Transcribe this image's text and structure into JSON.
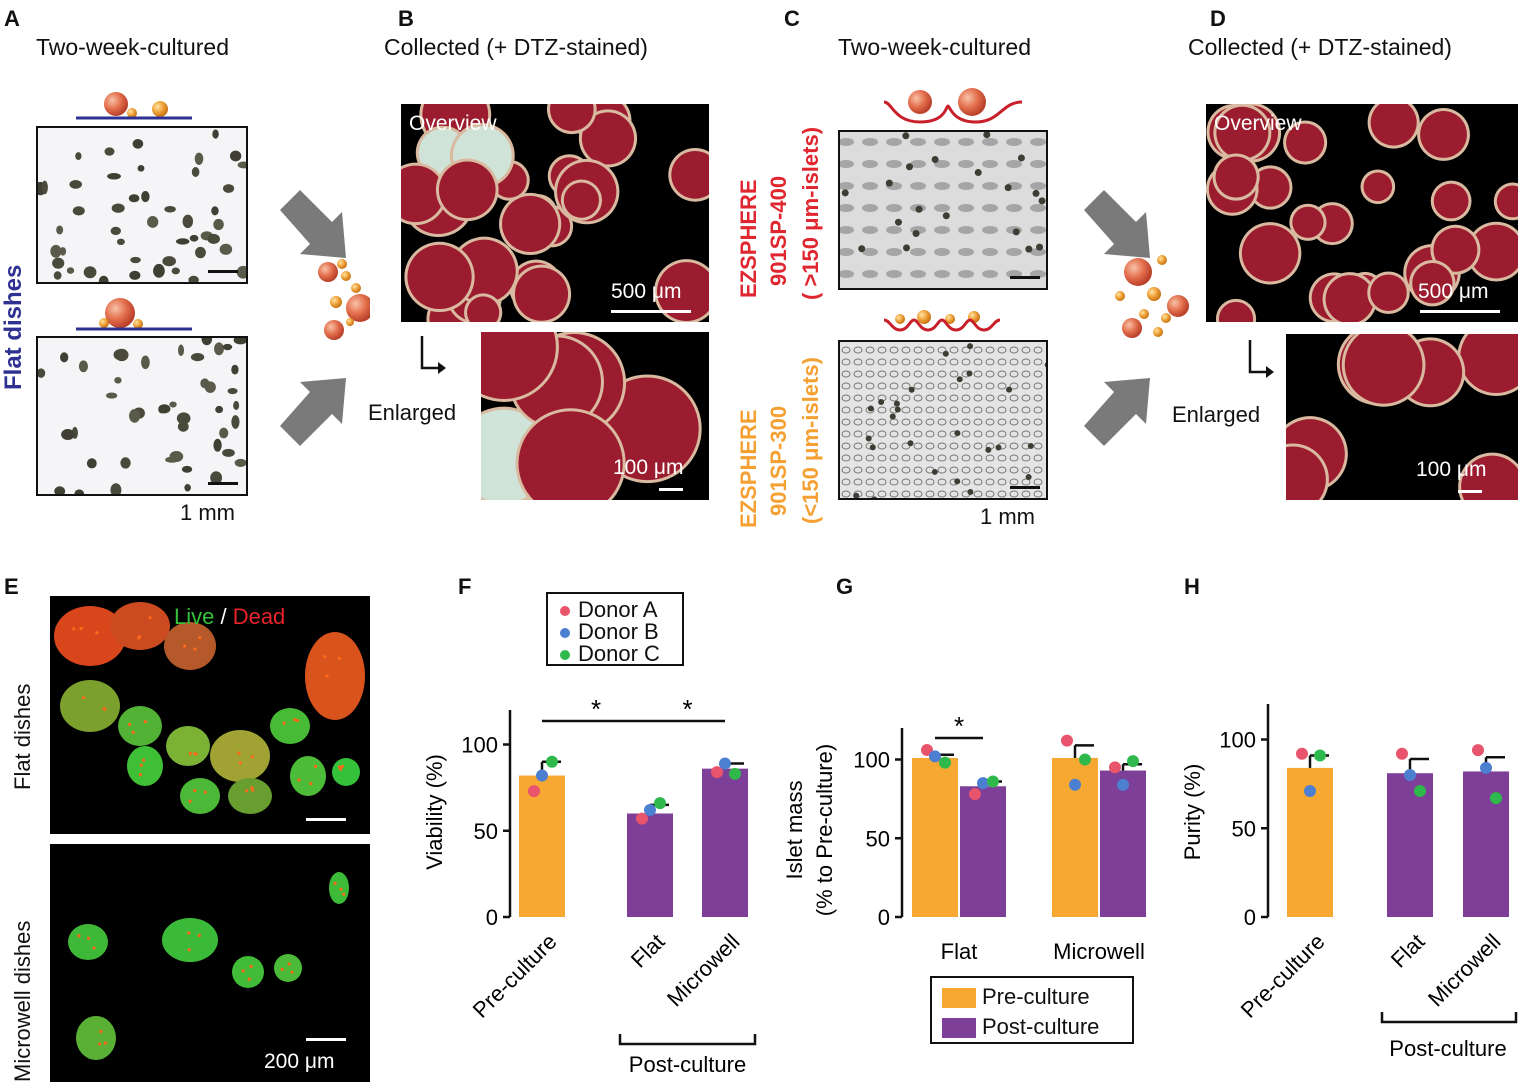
{
  "panels": {
    "A": {
      "letter": "A",
      "title": "Two-week-cultured",
      "side_label": "Flat  dishes",
      "scale": "1 mm"
    },
    "B": {
      "letter": "B",
      "title": "Collected (+ DTZ-stained)",
      "overview": "Overview",
      "enlarged": "Enlarged",
      "scale_top": "500 μm",
      "scale_bottom": "100 μm"
    },
    "C": {
      "letter": "C",
      "title": "Two-week-cultured",
      "label_top_1": "EZSPHERE",
      "label_top_2": "901SP-400",
      "label_top_3": "( >150 μm-islets)",
      "label_bot_1": "EZSPHERE",
      "label_bot_2": "901SP-300",
      "label_bot_3": "(<150 μm-islets)",
      "scale": "1 mm"
    },
    "D": {
      "letter": "D",
      "title": "Collected (+ DTZ-stained)",
      "overview": "Overview",
      "enlarged": "Enlarged",
      "scale_top": "500 μm",
      "scale_bottom": "100 μm"
    },
    "E": {
      "letter": "E",
      "live": "Live",
      "slash": " / ",
      "dead": "Dead",
      "label_top": "Flat dishes",
      "label_bottom": "Microwell dishes",
      "scale": "200 μm"
    },
    "F": {
      "letter": "F"
    },
    "G": {
      "letter": "G"
    },
    "H": {
      "letter": "H"
    }
  },
  "colors": {
    "pre_culture": "#F7A833",
    "post_culture": "#7E3F98",
    "donor_a": "#E8546B",
    "donor_b": "#4D7FD1",
    "donor_c": "#2FB84B",
    "ezsphere_400": "#E0262F",
    "ezsphere_300": "#F5A033",
    "flat_label": "#2E3192",
    "dtz": "#9B1C2E"
  },
  "donor_legend": [
    "Donor A",
    "Donor B",
    "Donor C"
  ],
  "culture_legend": [
    "Pre-culture",
    "Post-culture"
  ],
  "chart_data": [
    {
      "id": "F",
      "type": "bar",
      "categories": [
        "Pre-culture",
        "Flat",
        "Microwell"
      ],
      "group_label": "Post-culture",
      "ylabel": "Viability (%)",
      "ylim": [
        0,
        120
      ],
      "yticks": [
        0,
        50,
        100
      ],
      "bar_colors": [
        "pre_culture",
        "post_culture",
        "post_culture"
      ],
      "values": [
        82,
        60,
        86
      ],
      "errors": [
        8,
        5,
        3
      ],
      "donors": {
        "Donor A": [
          73,
          57,
          84
        ],
        "Donor B": [
          82,
          62,
          89
        ],
        "Donor C": [
          90,
          66,
          83
        ]
      },
      "significance": [
        {
          "between": [
            0,
            1
          ],
          "label": "*"
        },
        {
          "between": [
            1,
            2
          ],
          "label": "*"
        }
      ]
    },
    {
      "id": "G",
      "type": "bar",
      "categories": [
        "Flat",
        "Microwell"
      ],
      "series": [
        {
          "name": "Pre-culture",
          "values": [
            101,
            101
          ],
          "errors": [
            2,
            8
          ]
        },
        {
          "name": "Post-culture",
          "values": [
            83,
            93
          ],
          "errors": [
            3,
            4
          ]
        }
      ],
      "ylabel": "Islet mass",
      "ylabel2": "(% to Pre-culture)",
      "ylim": [
        0,
        120
      ],
      "yticks": [
        0,
        50,
        100
      ],
      "donors": {
        "Donor A": [
          [
            106,
            78
          ],
          [
            112,
            95
          ]
        ],
        "Donor B": [
          [
            102,
            85
          ],
          [
            84,
            84
          ]
        ],
        "Donor C": [
          [
            98,
            86
          ],
          [
            100,
            99
          ]
        ]
      },
      "significance": [
        {
          "between": [
            0,
            1
          ],
          "label": "*"
        }
      ]
    },
    {
      "id": "H",
      "type": "bar",
      "categories": [
        "Pre-culture",
        "Flat",
        "Microwell"
      ],
      "group_label": "Post-culture",
      "ylabel": "Purity (%)",
      "ylim": [
        0,
        120
      ],
      "yticks": [
        0,
        50,
        100
      ],
      "bar_colors": [
        "pre_culture",
        "post_culture",
        "post_culture"
      ],
      "values": [
        84,
        81,
        82
      ],
      "errors": [
        7,
        8,
        8
      ],
      "donors": {
        "Donor A": [
          92,
          92,
          94
        ],
        "Donor B": [
          71,
          80,
          84
        ],
        "Donor C": [
          91,
          71,
          67
        ]
      }
    }
  ]
}
